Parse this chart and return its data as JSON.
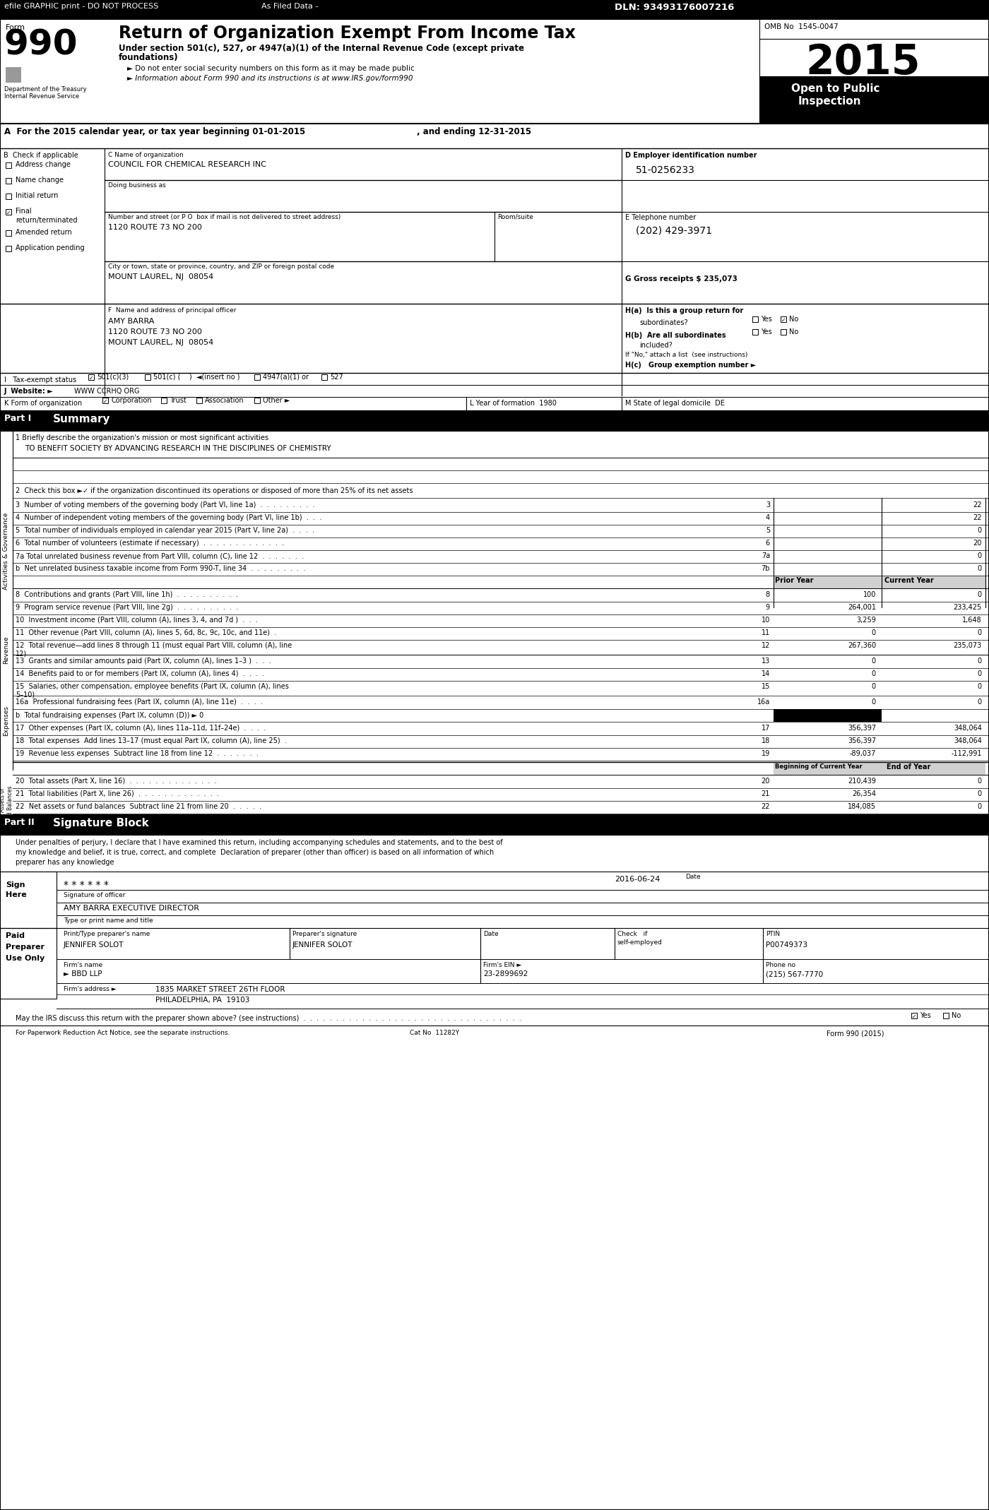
{
  "title": "Return of Organization Exempt From Income Tax",
  "form_number": "990",
  "year": "2015",
  "omb": "OMB No  1545-0047",
  "dept": "Department of the Treasury",
  "irs": "Internal Revenue Service",
  "org_name": "COUNCIL FOR CHEMICAL RESEARCH INC",
  "ein": "51-0256233",
  "phone": "(202) 429-3971",
  "gross_receipts": "G Gross receipts $ 235,073",
  "street": "1120 ROUTE 73 NO 200",
  "city": "MOUNT LAUREL, NJ  08054",
  "officer_name": "AMY BARRA",
  "officer_addr1": "1120 ROUTE 73 NO 200",
  "officer_addr2": "MOUNT LAUREL, NJ  08054",
  "website": "WWW CCRHQ ORG",
  "year_formation": "1980",
  "state_domicile": "DE",
  "mission": "TO BENEFIT SOCIETY BY ADVANCING RESEARCH IN THE DISCIPLINES OF CHEMISTRY",
  "sig_date": "2016-06-24",
  "officer_title": "AMY BARRA EXECUTIVE DIRECTOR",
  "prep_name": "JENNIFER SOLOT",
  "prep_ptin": "P00749373",
  "firm_name": "BBD LLP",
  "firm_ein": "23-2899692",
  "firm_addr": "1835 MARKET STREET 26TH FLOOR",
  "firm_city": "PHILADELPHIA, PA  19103",
  "firm_phone": "(215) 567-7770",
  "bg_color": "#ffffff"
}
